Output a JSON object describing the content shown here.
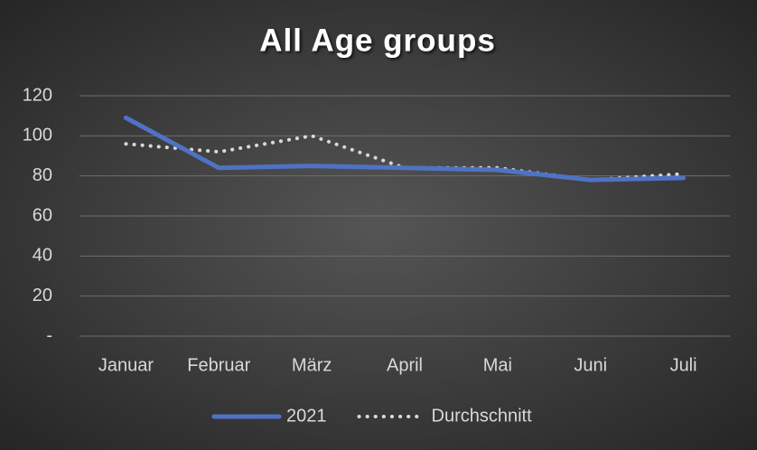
{
  "chart_data": {
    "type": "line",
    "title": "All Age groups",
    "categories": [
      "Januar",
      "Februar",
      "März",
      "April",
      "Mai",
      "Juni",
      "Juli"
    ],
    "series": [
      {
        "name": "2021",
        "color": "#4f72c4",
        "style": "solid",
        "values": [
          109,
          84,
          85,
          84,
          83,
          78,
          79
        ]
      },
      {
        "name": "Durchschnitt",
        "color": "#d9d9d9",
        "style": "dotted",
        "values": [
          96,
          92,
          100,
          84,
          84,
          78,
          81
        ]
      }
    ],
    "ylim": [
      0,
      120
    ],
    "yticks": [
      {
        "value": 0,
        "label": "-"
      },
      20,
      40,
      60,
      80,
      100,
      120
    ],
    "grid": true,
    "legend": "bottom"
  }
}
